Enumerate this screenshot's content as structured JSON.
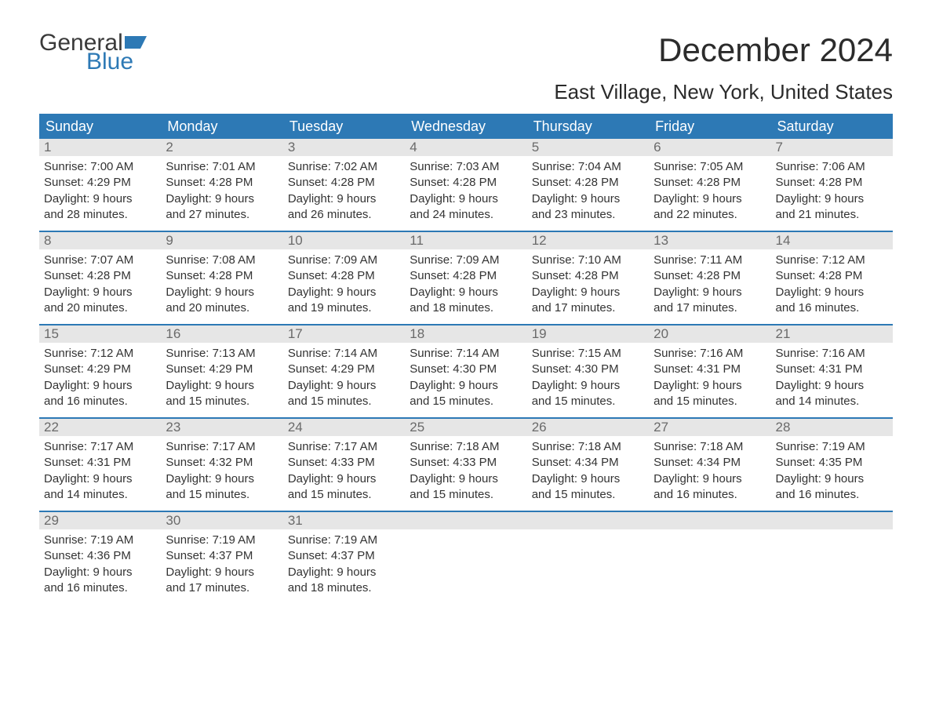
{
  "logo": {
    "word1": "General",
    "word2": "Blue"
  },
  "title": "December 2024",
  "subtitle": "East Village, New York, United States",
  "colors": {
    "header_bg": "#2d79b5",
    "header_text": "#ffffff",
    "week_border": "#2d79b5",
    "daynum_bg": "#e6e6e6",
    "daynum_text": "#6a6a6a",
    "body_text": "#333333",
    "logo_gray": "#3a3a3a",
    "logo_blue": "#2d79b5"
  },
  "day_headers": [
    "Sunday",
    "Monday",
    "Tuesday",
    "Wednesday",
    "Thursday",
    "Friday",
    "Saturday"
  ],
  "labels": {
    "sunrise": "Sunrise:",
    "sunset": "Sunset:",
    "daylight": "Daylight:"
  },
  "weeks": [
    [
      {
        "n": "1",
        "sunrise": "7:00 AM",
        "sunset": "4:29 PM",
        "dl1": "9 hours",
        "dl2": "and 28 minutes."
      },
      {
        "n": "2",
        "sunrise": "7:01 AM",
        "sunset": "4:28 PM",
        "dl1": "9 hours",
        "dl2": "and 27 minutes."
      },
      {
        "n": "3",
        "sunrise": "7:02 AM",
        "sunset": "4:28 PM",
        "dl1": "9 hours",
        "dl2": "and 26 minutes."
      },
      {
        "n": "4",
        "sunrise": "7:03 AM",
        "sunset": "4:28 PM",
        "dl1": "9 hours",
        "dl2": "and 24 minutes."
      },
      {
        "n": "5",
        "sunrise": "7:04 AM",
        "sunset": "4:28 PM",
        "dl1": "9 hours",
        "dl2": "and 23 minutes."
      },
      {
        "n": "6",
        "sunrise": "7:05 AM",
        "sunset": "4:28 PM",
        "dl1": "9 hours",
        "dl2": "and 22 minutes."
      },
      {
        "n": "7",
        "sunrise": "7:06 AM",
        "sunset": "4:28 PM",
        "dl1": "9 hours",
        "dl2": "and 21 minutes."
      }
    ],
    [
      {
        "n": "8",
        "sunrise": "7:07 AM",
        "sunset": "4:28 PM",
        "dl1": "9 hours",
        "dl2": "and 20 minutes."
      },
      {
        "n": "9",
        "sunrise": "7:08 AM",
        "sunset": "4:28 PM",
        "dl1": "9 hours",
        "dl2": "and 20 minutes."
      },
      {
        "n": "10",
        "sunrise": "7:09 AM",
        "sunset": "4:28 PM",
        "dl1": "9 hours",
        "dl2": "and 19 minutes."
      },
      {
        "n": "11",
        "sunrise": "7:09 AM",
        "sunset": "4:28 PM",
        "dl1": "9 hours",
        "dl2": "and 18 minutes."
      },
      {
        "n": "12",
        "sunrise": "7:10 AM",
        "sunset": "4:28 PM",
        "dl1": "9 hours",
        "dl2": "and 17 minutes."
      },
      {
        "n": "13",
        "sunrise": "7:11 AM",
        "sunset": "4:28 PM",
        "dl1": "9 hours",
        "dl2": "and 17 minutes."
      },
      {
        "n": "14",
        "sunrise": "7:12 AM",
        "sunset": "4:28 PM",
        "dl1": "9 hours",
        "dl2": "and 16 minutes."
      }
    ],
    [
      {
        "n": "15",
        "sunrise": "7:12 AM",
        "sunset": "4:29 PM",
        "dl1": "9 hours",
        "dl2": "and 16 minutes."
      },
      {
        "n": "16",
        "sunrise": "7:13 AM",
        "sunset": "4:29 PM",
        "dl1": "9 hours",
        "dl2": "and 15 minutes."
      },
      {
        "n": "17",
        "sunrise": "7:14 AM",
        "sunset": "4:29 PM",
        "dl1": "9 hours",
        "dl2": "and 15 minutes."
      },
      {
        "n": "18",
        "sunrise": "7:14 AM",
        "sunset": "4:30 PM",
        "dl1": "9 hours",
        "dl2": "and 15 minutes."
      },
      {
        "n": "19",
        "sunrise": "7:15 AM",
        "sunset": "4:30 PM",
        "dl1": "9 hours",
        "dl2": "and 15 minutes."
      },
      {
        "n": "20",
        "sunrise": "7:16 AM",
        "sunset": "4:31 PM",
        "dl1": "9 hours",
        "dl2": "and 15 minutes."
      },
      {
        "n": "21",
        "sunrise": "7:16 AM",
        "sunset": "4:31 PM",
        "dl1": "9 hours",
        "dl2": "and 14 minutes."
      }
    ],
    [
      {
        "n": "22",
        "sunrise": "7:17 AM",
        "sunset": "4:31 PM",
        "dl1": "9 hours",
        "dl2": "and 14 minutes."
      },
      {
        "n": "23",
        "sunrise": "7:17 AM",
        "sunset": "4:32 PM",
        "dl1": "9 hours",
        "dl2": "and 15 minutes."
      },
      {
        "n": "24",
        "sunrise": "7:17 AM",
        "sunset": "4:33 PM",
        "dl1": "9 hours",
        "dl2": "and 15 minutes."
      },
      {
        "n": "25",
        "sunrise": "7:18 AM",
        "sunset": "4:33 PM",
        "dl1": "9 hours",
        "dl2": "and 15 minutes."
      },
      {
        "n": "26",
        "sunrise": "7:18 AM",
        "sunset": "4:34 PM",
        "dl1": "9 hours",
        "dl2": "and 15 minutes."
      },
      {
        "n": "27",
        "sunrise": "7:18 AM",
        "sunset": "4:34 PM",
        "dl1": "9 hours",
        "dl2": "and 16 minutes."
      },
      {
        "n": "28",
        "sunrise": "7:19 AM",
        "sunset": "4:35 PM",
        "dl1": "9 hours",
        "dl2": "and 16 minutes."
      }
    ],
    [
      {
        "n": "29",
        "sunrise": "7:19 AM",
        "sunset": "4:36 PM",
        "dl1": "9 hours",
        "dl2": "and 16 minutes."
      },
      {
        "n": "30",
        "sunrise": "7:19 AM",
        "sunset": "4:37 PM",
        "dl1": "9 hours",
        "dl2": "and 17 minutes."
      },
      {
        "n": "31",
        "sunrise": "7:19 AM",
        "sunset": "4:37 PM",
        "dl1": "9 hours",
        "dl2": "and 18 minutes."
      },
      {
        "empty": true
      },
      {
        "empty": true
      },
      {
        "empty": true
      },
      {
        "empty": true
      }
    ]
  ]
}
